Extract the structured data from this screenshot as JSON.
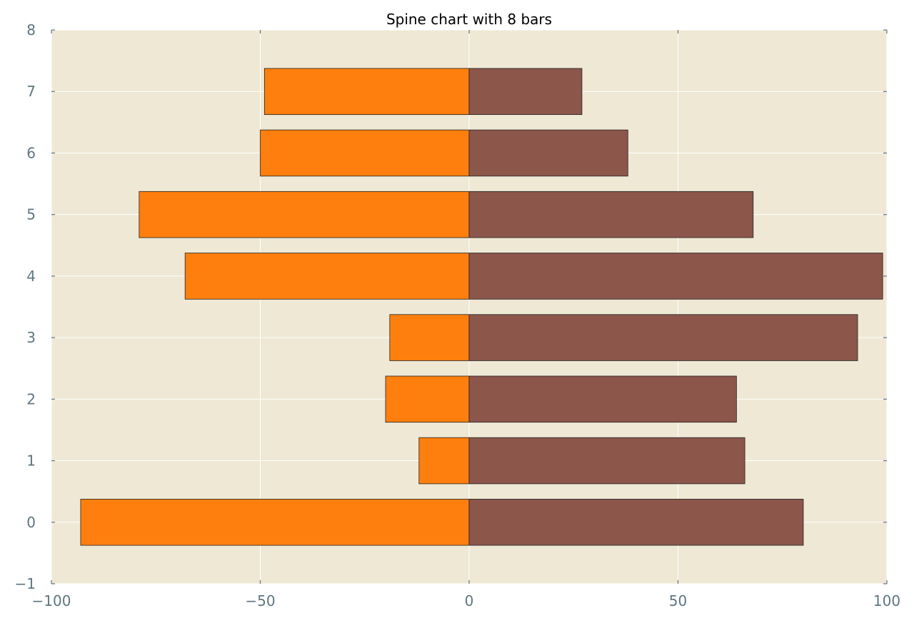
{
  "chart_data": {
    "type": "bar",
    "orientation": "horizontal",
    "title": "Spine chart with 8 bars",
    "xlabel": "",
    "ylabel": "",
    "categories": [
      "0",
      "1",
      "2",
      "3",
      "4",
      "5",
      "6",
      "7"
    ],
    "series": [
      {
        "values": [
          -93,
          -12,
          -20,
          -19,
          -68,
          -79,
          -50,
          -49
        ]
      },
      {
        "values": [
          80,
          66,
          64,
          93,
          99,
          68,
          38,
          27
        ]
      }
    ],
    "xlim": [
      -100,
      100
    ],
    "ylim": [
      -1,
      8
    ],
    "xticks": [
      "−100",
      "−50",
      "0",
      "50",
      "100"
    ],
    "xtick_values": [
      -100,
      -50,
      0,
      50,
      100
    ],
    "yticks": [
      "−1",
      "0",
      "1",
      "2",
      "3",
      "4",
      "5",
      "6",
      "7",
      "8"
    ],
    "ytick_values": [
      -1,
      0,
      1,
      2,
      3,
      4,
      5,
      6,
      7,
      8
    ],
    "grid": true,
    "colors": {
      "negative": "#ff7f0e",
      "positive": "#8c564b",
      "plot_background": "#eee8d5",
      "grid": "#ffffff",
      "tick_text": "#5f7680",
      "bar_edge": "#222222"
    }
  }
}
